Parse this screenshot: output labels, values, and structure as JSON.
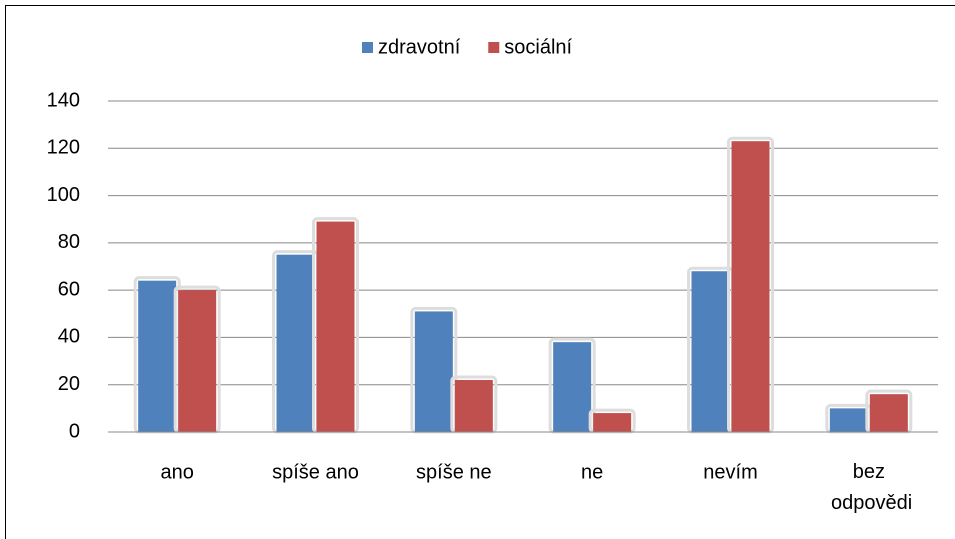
{
  "chart_data": {
    "type": "bar",
    "categories": [
      "ano",
      "spíše ano",
      "spíše ne",
      "ne",
      "nevím",
      "bez odpovědi"
    ],
    "series": [
      {
        "name": "zdravotní",
        "color": "#4f81bd",
        "values": [
          64,
          75,
          51,
          38,
          68,
          10
        ]
      },
      {
        "name": "sociální",
        "color": "#c0504d",
        "values": [
          60,
          89,
          22,
          8,
          123,
          16
        ]
      }
    ],
    "ylim": [
      0,
      140
    ],
    "yticks": [
      0,
      20,
      40,
      60,
      80,
      100,
      120,
      140
    ],
    "grid": true,
    "legend": "top"
  }
}
